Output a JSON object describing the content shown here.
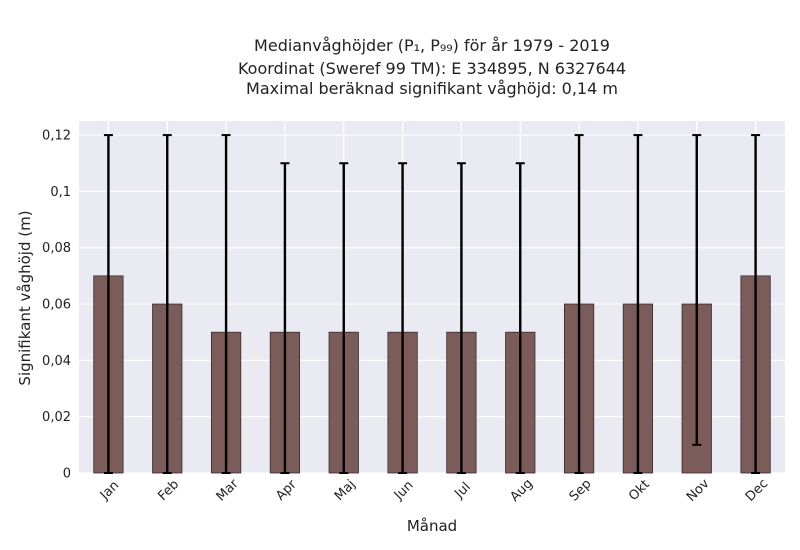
{
  "chart_data": {
    "type": "bar",
    "title_lines": [
      "Medianvåghöjder (P₁, P₉₉) för år 1979 - 2019",
      "Koordinat (Sweref 99 TM): E 334895, N 6327644",
      "Maximal beräknad signifikant våghöjd: 0,14 m"
    ],
    "xlabel": "Månad",
    "ylabel": "Signifikant våghöjd (m)",
    "categories": [
      "Jan",
      "Feb",
      "Mar",
      "Apr",
      "Maj",
      "Jun",
      "Jul",
      "Aug",
      "Sep",
      "Okt",
      "Nov",
      "Dec"
    ],
    "values": [
      0.07,
      0.06,
      0.05,
      0.05,
      0.05,
      0.05,
      0.05,
      0.05,
      0.06,
      0.06,
      0.06,
      0.07
    ],
    "error_low": [
      0,
      0,
      0,
      0,
      0,
      0,
      0,
      0,
      0,
      0,
      0.01,
      0
    ],
    "error_high": [
      0.12,
      0.12,
      0.12,
      0.11,
      0.11,
      0.11,
      0.11,
      0.11,
      0.12,
      0.12,
      0.12,
      0.12
    ],
    "ylim": [
      0,
      0.125
    ],
    "yticks": [
      0,
      0.02,
      0.04,
      0.06,
      0.08,
      0.1,
      0.12
    ],
    "ytick_labels": [
      "0",
      "0,02",
      "0,04",
      "0,06",
      "0,08",
      "0,1",
      "0,12"
    ],
    "grid": true,
    "bar_color": "#7b5c5b",
    "bar_edge_color": "#3a2a2a",
    "error_color": "#000000",
    "plot_background": "#eaeaf2",
    "grid_color": "#ffffff"
  }
}
